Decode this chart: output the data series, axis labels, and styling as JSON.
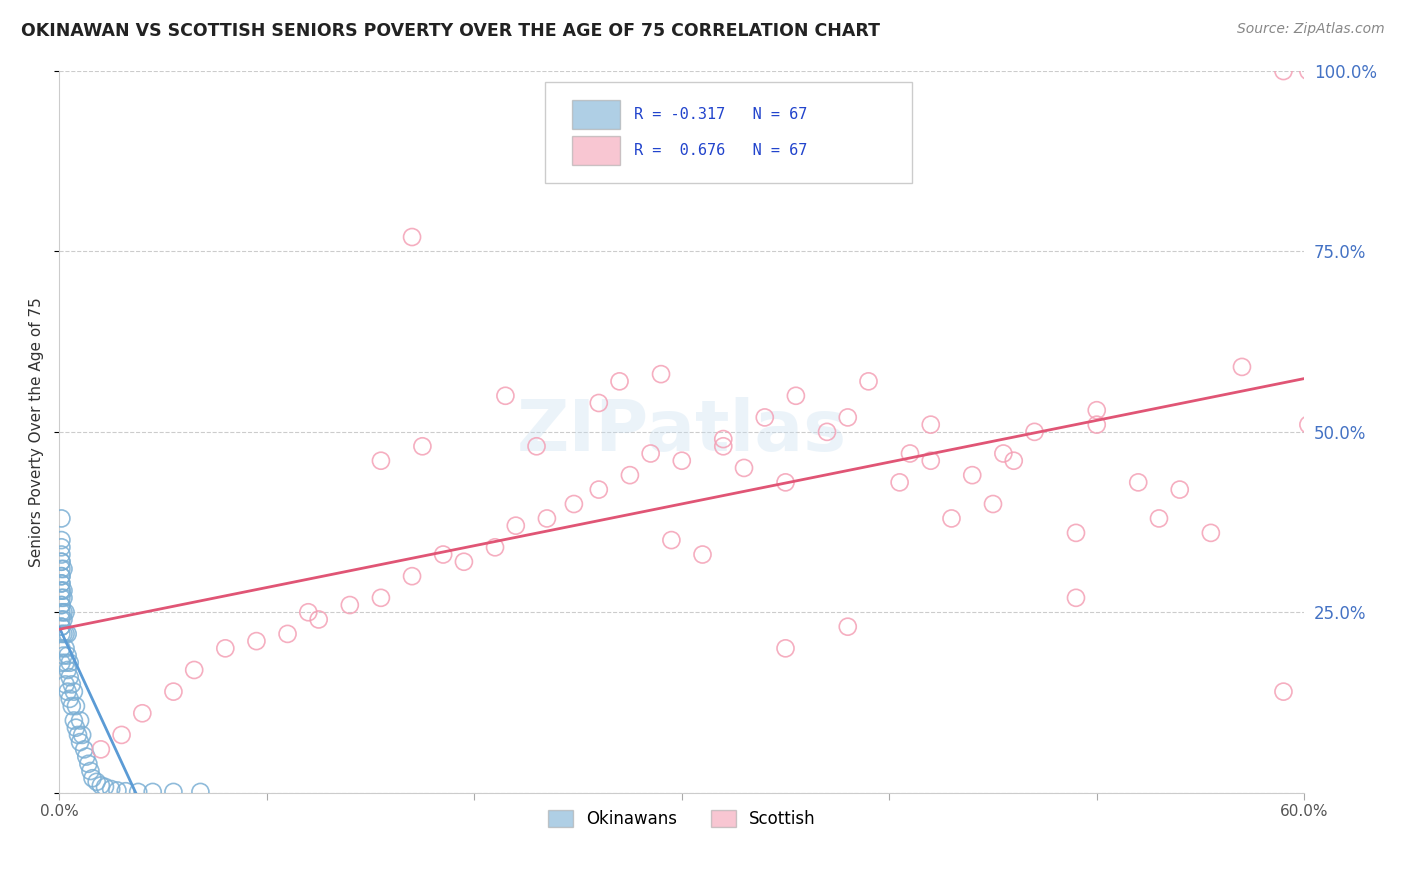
{
  "title": "OKINAWAN VS SCOTTISH SENIORS POVERTY OVER THE AGE OF 75 CORRELATION CHART",
  "source": "Source: ZipAtlas.com",
  "ylabel": "Seniors Poverty Over the Age of 75",
  "xlim": [
    0.0,
    0.6
  ],
  "ylim": [
    0.0,
    1.0
  ],
  "xticks": [
    0.0,
    0.1,
    0.2,
    0.3,
    0.4,
    0.5,
    0.6
  ],
  "xticklabels": [
    "0.0%",
    "",
    "",
    "",
    "",
    "",
    "60.0%"
  ],
  "yticks_right": [
    0.0,
    0.25,
    0.5,
    0.75,
    1.0
  ],
  "yticklabels_right": [
    "",
    "25.0%",
    "50.0%",
    "75.0%",
    "100.0%"
  ],
  "grid_color": "#cccccc",
  "bg_color": "#ffffff",
  "okinawan_color": "#7bafd4",
  "scottish_color": "#f4a0b5",
  "okinawan_line_color": "#5b9bd5",
  "scottish_line_color": "#e05575",
  "okinawan_R": -0.317,
  "scottish_R": 0.676,
  "N": 67,
  "legend_labels": [
    "Okinawans",
    "Scottish"
  ],
  "watermark": "ZIPatlas",
  "okin_x": [
    0.001,
    0.001,
    0.001,
    0.001,
    0.001,
    0.001,
    0.001,
    0.001,
    0.001,
    0.001,
    0.001,
    0.001,
    0.001,
    0.001,
    0.001,
    0.001,
    0.001,
    0.001,
    0.002,
    0.002,
    0.002,
    0.002,
    0.002,
    0.002,
    0.002,
    0.003,
    0.003,
    0.003,
    0.003,
    0.003,
    0.004,
    0.004,
    0.004,
    0.004,
    0.005,
    0.005,
    0.005,
    0.006,
    0.006,
    0.007,
    0.007,
    0.008,
    0.008,
    0.009,
    0.01,
    0.01,
    0.011,
    0.012,
    0.013,
    0.014,
    0.015,
    0.016,
    0.018,
    0.02,
    0.022,
    0.025,
    0.028,
    0.032,
    0.038,
    0.045,
    0.055,
    0.068,
    0.001,
    0.001,
    0.001,
    0.001,
    0.001
  ],
  "okin_y": [
    0.3,
    0.27,
    0.33,
    0.28,
    0.25,
    0.35,
    0.22,
    0.31,
    0.26,
    0.29,
    0.24,
    0.32,
    0.28,
    0.2,
    0.23,
    0.26,
    0.18,
    0.3,
    0.28,
    0.25,
    0.22,
    0.31,
    0.19,
    0.24,
    0.27,
    0.22,
    0.18,
    0.25,
    0.2,
    0.15,
    0.22,
    0.17,
    0.19,
    0.14,
    0.18,
    0.16,
    0.13,
    0.15,
    0.12,
    0.14,
    0.1,
    0.12,
    0.09,
    0.08,
    0.1,
    0.07,
    0.08,
    0.06,
    0.05,
    0.04,
    0.03,
    0.02,
    0.015,
    0.01,
    0.008,
    0.005,
    0.003,
    0.002,
    0.001,
    0.001,
    0.001,
    0.001,
    0.32,
    0.38,
    0.29,
    0.34,
    0.23
  ],
  "scot_x": [
    0.02,
    0.03,
    0.04,
    0.055,
    0.065,
    0.08,
    0.095,
    0.11,
    0.125,
    0.14,
    0.155,
    0.17,
    0.185,
    0.195,
    0.21,
    0.22,
    0.235,
    0.248,
    0.26,
    0.275,
    0.285,
    0.3,
    0.155,
    0.175,
    0.26,
    0.32,
    0.34,
    0.355,
    0.37,
    0.39,
    0.405,
    0.42,
    0.44,
    0.455,
    0.47,
    0.215,
    0.23,
    0.29,
    0.33,
    0.35,
    0.295,
    0.31,
    0.43,
    0.45,
    0.35,
    0.38,
    0.53,
    0.49,
    0.555,
    0.54,
    0.38,
    0.41,
    0.46,
    0.5,
    0.52,
    0.49,
    0.57,
    0.59,
    0.59,
    0.602,
    0.602,
    0.17,
    0.27,
    0.32,
    0.42,
    0.12,
    0.5
  ],
  "scot_y": [
    0.06,
    0.08,
    0.11,
    0.14,
    0.17,
    0.2,
    0.21,
    0.22,
    0.24,
    0.26,
    0.27,
    0.3,
    0.33,
    0.32,
    0.34,
    0.37,
    0.38,
    0.4,
    0.42,
    0.44,
    0.47,
    0.46,
    0.46,
    0.48,
    0.54,
    0.49,
    0.52,
    0.55,
    0.5,
    0.57,
    0.43,
    0.46,
    0.44,
    0.47,
    0.5,
    0.55,
    0.48,
    0.58,
    0.45,
    0.43,
    0.35,
    0.33,
    0.38,
    0.4,
    0.2,
    0.23,
    0.38,
    0.36,
    0.36,
    0.42,
    0.52,
    0.47,
    0.46,
    0.51,
    0.43,
    0.27,
    0.59,
    0.14,
    1.0,
    1.0,
    0.51,
    0.77,
    0.57,
    0.48,
    0.51,
    0.25,
    0.53
  ]
}
